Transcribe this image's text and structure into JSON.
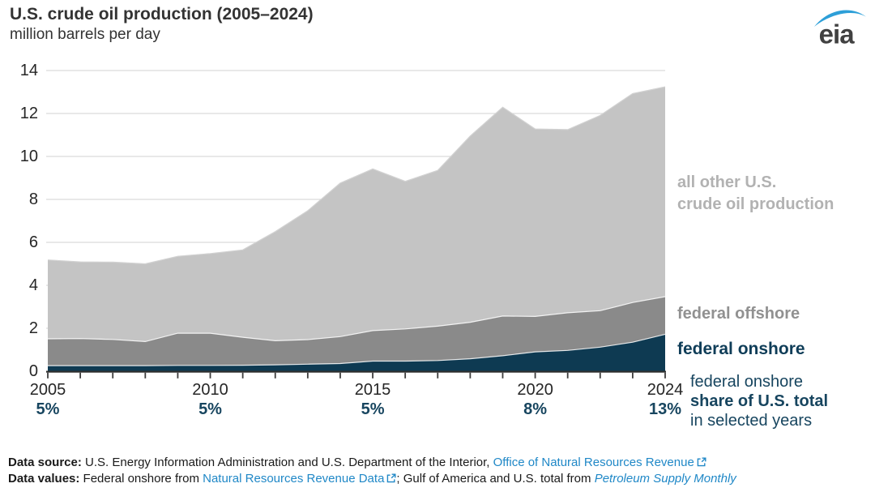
{
  "header": {
    "title": "U.S. crude oil production (2005–2024)",
    "subtitle": "million barrels per day",
    "logo_text": "eia",
    "logo_swoosh_color": "#2d9fd8",
    "logo_text_color": "#414141"
  },
  "chart_data": {
    "type": "area",
    "stacked": true,
    "title": "U.S. crude oil production (2005–2024)",
    "ylabel": "million barrels per day",
    "x": [
      2005,
      2006,
      2007,
      2008,
      2009,
      2010,
      2011,
      2012,
      2013,
      2014,
      2015,
      2016,
      2017,
      2018,
      2019,
      2020,
      2021,
      2022,
      2023,
      2024
    ],
    "series": [
      {
        "name": "federal onshore",
        "color": "#0e3a52",
        "values": [
          0.26,
          0.26,
          0.26,
          0.26,
          0.27,
          0.27,
          0.28,
          0.3,
          0.33,
          0.36,
          0.47,
          0.47,
          0.5,
          0.58,
          0.72,
          0.9,
          0.97,
          1.12,
          1.35,
          1.72
        ]
      },
      {
        "name": "federal offshore",
        "color": "#8a8a8a",
        "values": [
          1.25,
          1.26,
          1.22,
          1.12,
          1.5,
          1.5,
          1.3,
          1.12,
          1.14,
          1.25,
          1.42,
          1.5,
          1.6,
          1.7,
          1.85,
          1.65,
          1.75,
          1.7,
          1.85,
          1.75
        ]
      },
      {
        "name": "all other U.S. crude oil production",
        "color": "#c4c4c4",
        "values": [
          3.67,
          3.57,
          3.6,
          3.62,
          3.58,
          3.71,
          4.07,
          5.08,
          6.0,
          7.15,
          7.53,
          6.87,
          7.25,
          8.67,
          9.72,
          8.73,
          8.53,
          9.09,
          9.73,
          9.77
        ]
      }
    ],
    "totals": [
      5.18,
      5.09,
      5.08,
      5.0,
      5.35,
      5.48,
      5.65,
      6.5,
      7.47,
      8.76,
      9.42,
      8.84,
      9.35,
      10.95,
      12.29,
      11.28,
      11.25,
      11.91,
      12.93,
      13.24
    ],
    "ylim": [
      0,
      14
    ],
    "yticks": [
      0,
      2,
      4,
      6,
      8,
      10,
      12,
      14
    ],
    "xticks": [
      2005,
      2010,
      2015,
      2020,
      2024
    ],
    "share_labels": [
      {
        "year": 2005,
        "label": "5%"
      },
      {
        "year": 2010,
        "label": "5%"
      },
      {
        "year": 2015,
        "label": "5%"
      },
      {
        "year": 2020,
        "label": "8%"
      },
      {
        "year": 2024,
        "label": "13%"
      }
    ],
    "grid": "horizontal",
    "gridline_color": "#d9d9d9",
    "axis_color": "#2f2f2f",
    "legend_position": "right-annotations"
  },
  "annotations": {
    "all_other": {
      "line1": "all other U.S.",
      "line2": "crude oil production"
    },
    "federal_offshore": {
      "label": "federal offshore"
    },
    "federal_onshore": {
      "label": "federal onshore"
    },
    "share_caption": {
      "line1": "federal onshore",
      "line2": "share of U.S. total",
      "line3": "in selected years"
    }
  },
  "footer": {
    "line1": {
      "lead": "Data source:",
      "text": " U.S. Energy Information Administration and U.S. Department of the Interior, ",
      "link": "Office of Natural Resources Revenue"
    },
    "line2": {
      "lead": "Data values:",
      "text1": " Federal onshore from ",
      "link1": "Natural Resources Revenue Data",
      "text2": "; Gulf of America and U.S. total from ",
      "link2": "Petroleum Supply Monthly"
    },
    "link_color": "#2088c7"
  }
}
